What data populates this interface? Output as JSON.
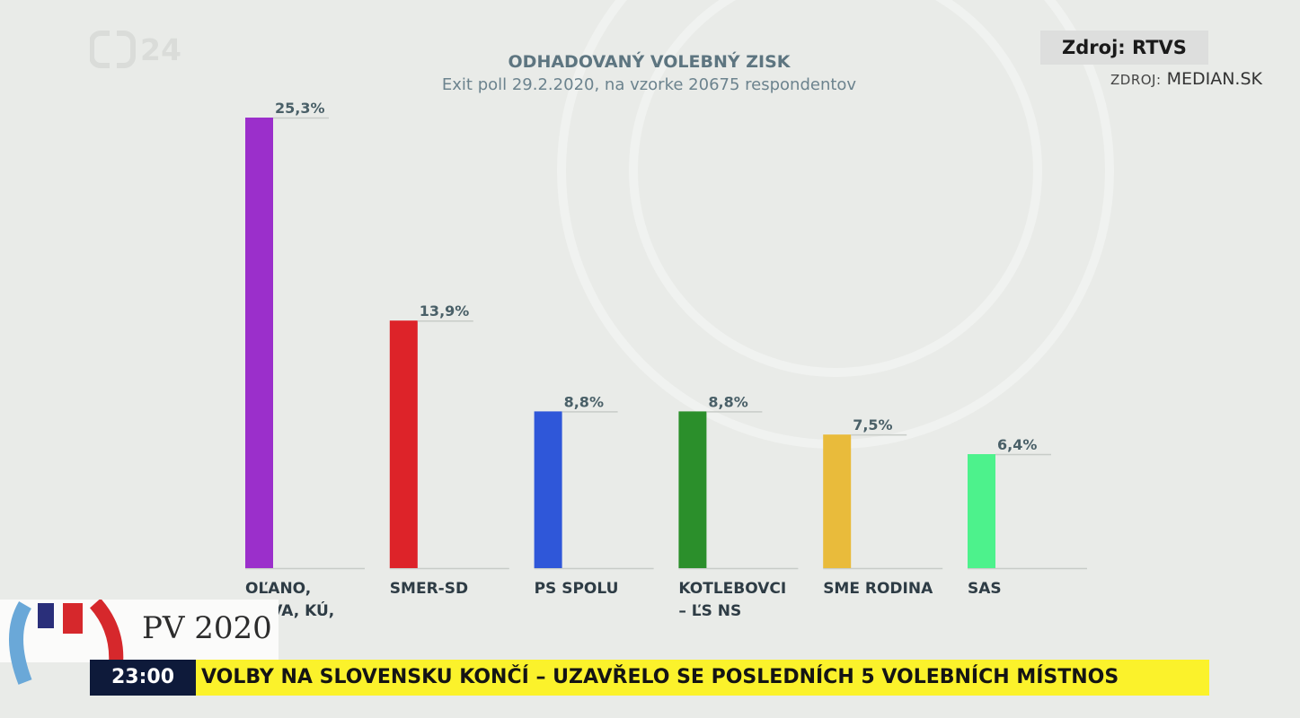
{
  "channel": {
    "logo_text": "24"
  },
  "header": {
    "source_primary": "Zdroj: RTVS",
    "source_secondary_label": "ZDROJ:",
    "source_secondary_value": "MEDIAN.SK"
  },
  "lower_third": {
    "title": "PV 2020",
    "ticker_time": "23:00",
    "ticker_text": "VOLBY NA SLOVENSKU KONČÍ – UZAVŘELO SE POSLEDNÍCH 5 VOLEBNÍCH MÍSTNOS"
  },
  "chart_data": {
    "type": "bar",
    "title": "ODHADOVANÝ VOLEBNÝ ZISK",
    "subtitle": "Exit poll 29.2.2020, na vzorke 20675 respondentov",
    "categories": [
      [
        "OĽANO,",
        "NOVA, KÚ,"
      ],
      [
        "SMER-SD"
      ],
      [
        "PS SPOLU"
      ],
      [
        "KOTLEBOVCI",
        "– ĽS NS"
      ],
      [
        "SME RODINA"
      ],
      [
        "SAS"
      ]
    ],
    "values": [
      25.3,
      13.9,
      8.8,
      8.8,
      7.5,
      6.4
    ],
    "value_labels": [
      "25,3%",
      "13,9%",
      "8,8%",
      "8,8%",
      "7,5%",
      "6,4%"
    ],
    "colors": [
      "#9b2fcb",
      "#dd2329",
      "#2f57d9",
      "#2b8f2b",
      "#e9bb3b",
      "#4df28c"
    ],
    "ylim": [
      0,
      25.3
    ],
    "grid": false,
    "legend": "none"
  }
}
